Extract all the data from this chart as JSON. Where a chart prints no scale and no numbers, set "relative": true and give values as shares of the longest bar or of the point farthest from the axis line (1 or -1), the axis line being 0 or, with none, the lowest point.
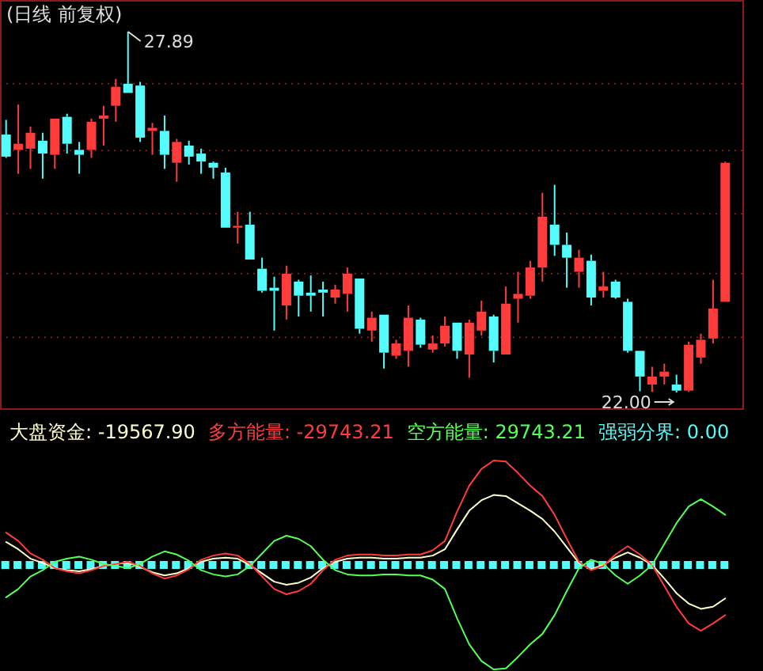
{
  "chart_data": [
    {
      "type": "candlestick",
      "title": "(日线 前复权)",
      "categories": [
        null,
        null,
        null,
        null,
        null,
        null,
        null,
        null,
        null,
        null,
        null,
        null,
        null,
        null,
        null,
        null,
        null,
        null,
        null,
        null,
        null,
        null,
        null,
        null,
        null,
        null,
        null,
        null,
        null,
        null,
        null,
        null,
        null,
        null,
        null,
        null,
        null,
        null,
        null,
        null,
        null,
        null,
        null,
        null,
        null,
        null,
        null,
        null,
        null,
        null,
        null,
        null,
        null,
        null,
        null,
        null,
        null,
        null,
        null,
        null
      ],
      "ohlc": [
        [
          26.21,
          26.45,
          25.83,
          25.85
        ],
        [
          25.96,
          26.7,
          25.57,
          26.06
        ],
        [
          25.98,
          26.34,
          25.65,
          26.24
        ],
        [
          26.11,
          26.24,
          25.49,
          25.9
        ],
        [
          25.88,
          26.47,
          25.65,
          26.47
        ],
        [
          26.5,
          26.55,
          25.9,
          26.06
        ],
        [
          25.96,
          26.09,
          25.57,
          25.88
        ],
        [
          25.96,
          26.47,
          25.83,
          26.42
        ],
        [
          26.47,
          26.68,
          26.03,
          26.52
        ],
        [
          26.68,
          27.12,
          26.42,
          26.99
        ],
        [
          27.04,
          27.89,
          26.89,
          26.89
        ],
        [
          27.01,
          27.07,
          26.09,
          26.16
        ],
        [
          26.27,
          26.4,
          25.88,
          26.32
        ],
        [
          26.27,
          26.52,
          25.65,
          25.88
        ],
        [
          25.75,
          26.14,
          25.44,
          26.09
        ],
        [
          26.03,
          26.11,
          25.72,
          25.85
        ],
        [
          25.9,
          25.98,
          25.57,
          25.77
        ],
        [
          25.75,
          25.77,
          25.49,
          25.67
        ],
        [
          25.59,
          25.67,
          24.69,
          24.69
        ],
        [
          24.69,
          24.95,
          24.43,
          24.72
        ],
        [
          24.74,
          24.95,
          24.17,
          24.17
        ],
        [
          24.02,
          24.2,
          23.63,
          23.66
        ],
        [
          23.71,
          23.89,
          23.01,
          23.66
        ],
        [
          23.42,
          24.07,
          23.19,
          23.94
        ],
        [
          23.81,
          23.84,
          23.24,
          23.58
        ],
        [
          23.63,
          23.91,
          23.32,
          23.58
        ],
        [
          23.68,
          23.81,
          23.24,
          23.63
        ],
        [
          23.55,
          23.76,
          23.45,
          23.68
        ],
        [
          23.61,
          24.04,
          23.32,
          23.94
        ],
        [
          23.86,
          23.86,
          22.96,
          23.04
        ],
        [
          23.01,
          23.32,
          22.83,
          23.22
        ],
        [
          23.27,
          23.27,
          22.39,
          22.65
        ],
        [
          22.6,
          22.86,
          22.55,
          22.8
        ],
        [
          22.68,
          23.42,
          22.42,
          23.22
        ],
        [
          23.19,
          23.22,
          22.73,
          22.78
        ],
        [
          22.7,
          22.93,
          22.65,
          22.8
        ],
        [
          22.8,
          23.24,
          22.75,
          23.09
        ],
        [
          23.14,
          23.14,
          22.55,
          22.68
        ],
        [
          22.62,
          23.19,
          22.24,
          23.14
        ],
        [
          23.01,
          23.5,
          22.93,
          23.32
        ],
        [
          23.24,
          23.27,
          22.49,
          22.68
        ],
        [
          22.62,
          23.73,
          22.62,
          23.45
        ],
        [
          23.53,
          23.97,
          23.14,
          23.61
        ],
        [
          23.58,
          24.15,
          23.53,
          24.04
        ],
        [
          24.04,
          25.26,
          23.81,
          24.87
        ],
        [
          24.74,
          25.39,
          24.23,
          24.41
        ],
        [
          24.41,
          24.61,
          23.71,
          24.2
        ],
        [
          23.97,
          24.33,
          23.71,
          24.2
        ],
        [
          24.15,
          24.25,
          23.42,
          23.55
        ],
        [
          23.66,
          23.97,
          23.55,
          23.73
        ],
        [
          23.81,
          23.84,
          23.53,
          23.55
        ],
        [
          23.48,
          23.53,
          22.65,
          22.68
        ],
        [
          22.68,
          22.68,
          22.02,
          22.26
        ],
        [
          22.13,
          22.42,
          22.01,
          22.26
        ],
        [
          22.26,
          22.47,
          22.13,
          22.34
        ],
        [
          22.13,
          22.29,
          22.0,
          22.03
        ],
        [
          22.03,
          22.83,
          22.01,
          22.78
        ],
        [
          22.57,
          22.96,
          22.47,
          22.86
        ],
        [
          22.88,
          23.84,
          22.8,
          23.37
        ],
        [
          23.48,
          25.77,
          23.48,
          25.75
        ]
      ],
      "colors": [
        "#54fcfc",
        "#ff3c3c",
        "#ff3c3c",
        "#54fcfc",
        "#ff3c3c",
        "#54fcfc",
        "#54fcfc",
        "#ff3c3c",
        "#ff3c3c",
        "#ff3c3c",
        "#54fcfc",
        "#54fcfc",
        "#ff3c3c",
        "#54fcfc",
        "#ff3c3c",
        "#54fcfc",
        "#54fcfc",
        "#54fcfc",
        "#54fcfc",
        "#ff3c3c",
        "#54fcfc",
        "#54fcfc",
        "#54fcfc",
        "#ff3c3c",
        "#54fcfc",
        "#54fcfc",
        "#54fcfc",
        "#ff3c3c",
        "#ff3c3c",
        "#54fcfc",
        "#ff3c3c",
        "#54fcfc",
        "#ff3c3c",
        "#ff3c3c",
        "#54fcfc",
        "#ff3c3c",
        "#ff3c3c",
        "#54fcfc",
        "#ff3c3c",
        "#ff3c3c",
        "#54fcfc",
        "#ff3c3c",
        "#ff3c3c",
        "#ff3c3c",
        "#ff3c3c",
        "#54fcfc",
        "#54fcfc",
        "#ff3c3c",
        "#54fcfc",
        "#ff3c3c",
        "#54fcfc",
        "#54fcfc",
        "#54fcfc",
        "#ff3c3c",
        "#ff3c3c",
        "#54fcfc",
        "#ff3c3c",
        "#ff3c3c",
        "#ff3c3c",
        "#ff3c3c"
      ],
      "yticks": [
        {
          "value": 27.04,
          "label": null
        },
        {
          "value": 25.95,
          "label": null
        },
        {
          "value": 24.92,
          "label": null
        },
        {
          "value": 23.94,
          "label": null
        },
        {
          "value": 22.9,
          "label": null
        }
      ],
      "grid": "y",
      "annotations": [
        "27.89",
        "22.00"
      ]
    },
    {
      "type": "line",
      "relative": true,
      "ref_lines": [
        {
          "axis": "y",
          "value": 0,
          "label": "强弱分界: 0.00",
          "color": "#54fcfc",
          "line_style": "dotted"
        }
      ],
      "categories": [
        null,
        null,
        null,
        null,
        null,
        null,
        null,
        null,
        null,
        null,
        null,
        null,
        null,
        null,
        null,
        null,
        null,
        null,
        null,
        null,
        null,
        null,
        null,
        null,
        null,
        null,
        null,
        null,
        null,
        null,
        null,
        null,
        null,
        null,
        null,
        null,
        null,
        null,
        null,
        null,
        null,
        null,
        null,
        null,
        null,
        null,
        null,
        null,
        null,
        null,
        null,
        null,
        null,
        null,
        null,
        null,
        null,
        null,
        null,
        null
      ],
      "series": [
        {
          "name": "大盘资金: -19567.90",
          "color": "#ffffcc",
          "values": [
            0.22,
            0.15,
            0.06,
            0.02,
            -0.03,
            -0.05,
            -0.06,
            -0.04,
            -0.01,
            0.01,
            0.02,
            -0.02,
            -0.07,
            -0.1,
            -0.08,
            -0.03,
            0.03,
            0.06,
            0.07,
            0.06,
            0,
            -0.08,
            -0.16,
            -0.19,
            -0.17,
            -0.12,
            -0.03,
            0.03,
            0.06,
            0.07,
            0.07,
            0.06,
            0.06,
            0.07,
            0.07,
            0.09,
            0.15,
            0.34,
            0.52,
            0.62,
            0.67,
            0.66,
            0.59,
            0.52,
            0.44,
            0.32,
            0.17,
            0.02,
            -0.04,
            0,
            0.07,
            0.12,
            0.07,
            0,
            -0.13,
            -0.27,
            -0.37,
            -0.42,
            -0.4,
            -0.32
          ]
        },
        {
          "name": "多方能量: -29743.21",
          "color": "#ff3c3c",
          "values": [
            0.31,
            0.23,
            0.11,
            0.05,
            -0.03,
            -0.06,
            -0.08,
            -0.05,
            -0.01,
            0.01,
            0.03,
            -0.01,
            -0.08,
            -0.13,
            -0.1,
            -0.04,
            0.05,
            0.09,
            0.11,
            0.09,
            0.01,
            -0.11,
            -0.23,
            -0.28,
            -0.25,
            -0.18,
            -0.05,
            0.05,
            0.09,
            0.1,
            0.1,
            0.09,
            0.09,
            0.1,
            0.1,
            0.14,
            0.23,
            0.51,
            0.76,
            0.92,
            1,
            0.99,
            0.88,
            0.76,
            0.66,
            0.48,
            0.25,
            0.03,
            -0.05,
            -0.01,
            0.1,
            0.18,
            0.1,
            0,
            -0.2,
            -0.4,
            -0.56,
            -0.63,
            -0.56,
            -0.48
          ]
        },
        {
          "name": "空方能量: 29743.21",
          "color": "#55ff55",
          "values": [
            -0.31,
            -0.23,
            -0.11,
            -0.05,
            0.03,
            0.06,
            0.08,
            0.05,
            0.01,
            -0.01,
            -0.03,
            0.01,
            0.08,
            0.13,
            0.1,
            0.04,
            -0.05,
            -0.09,
            -0.11,
            -0.09,
            -0.01,
            0.11,
            0.23,
            0.28,
            0.25,
            0.18,
            0.05,
            -0.05,
            -0.09,
            -0.1,
            -0.1,
            -0.09,
            -0.09,
            -0.1,
            -0.1,
            -0.14,
            -0.23,
            -0.51,
            -0.76,
            -0.92,
            -1,
            -0.99,
            -0.88,
            -0.76,
            -0.66,
            -0.48,
            -0.25,
            -0.03,
            0.05,
            0.01,
            -0.1,
            -0.18,
            -0.1,
            0,
            0.2,
            0.4,
            0.56,
            0.63,
            0.56,
            0.48
          ]
        }
      ]
    }
  ]
}
